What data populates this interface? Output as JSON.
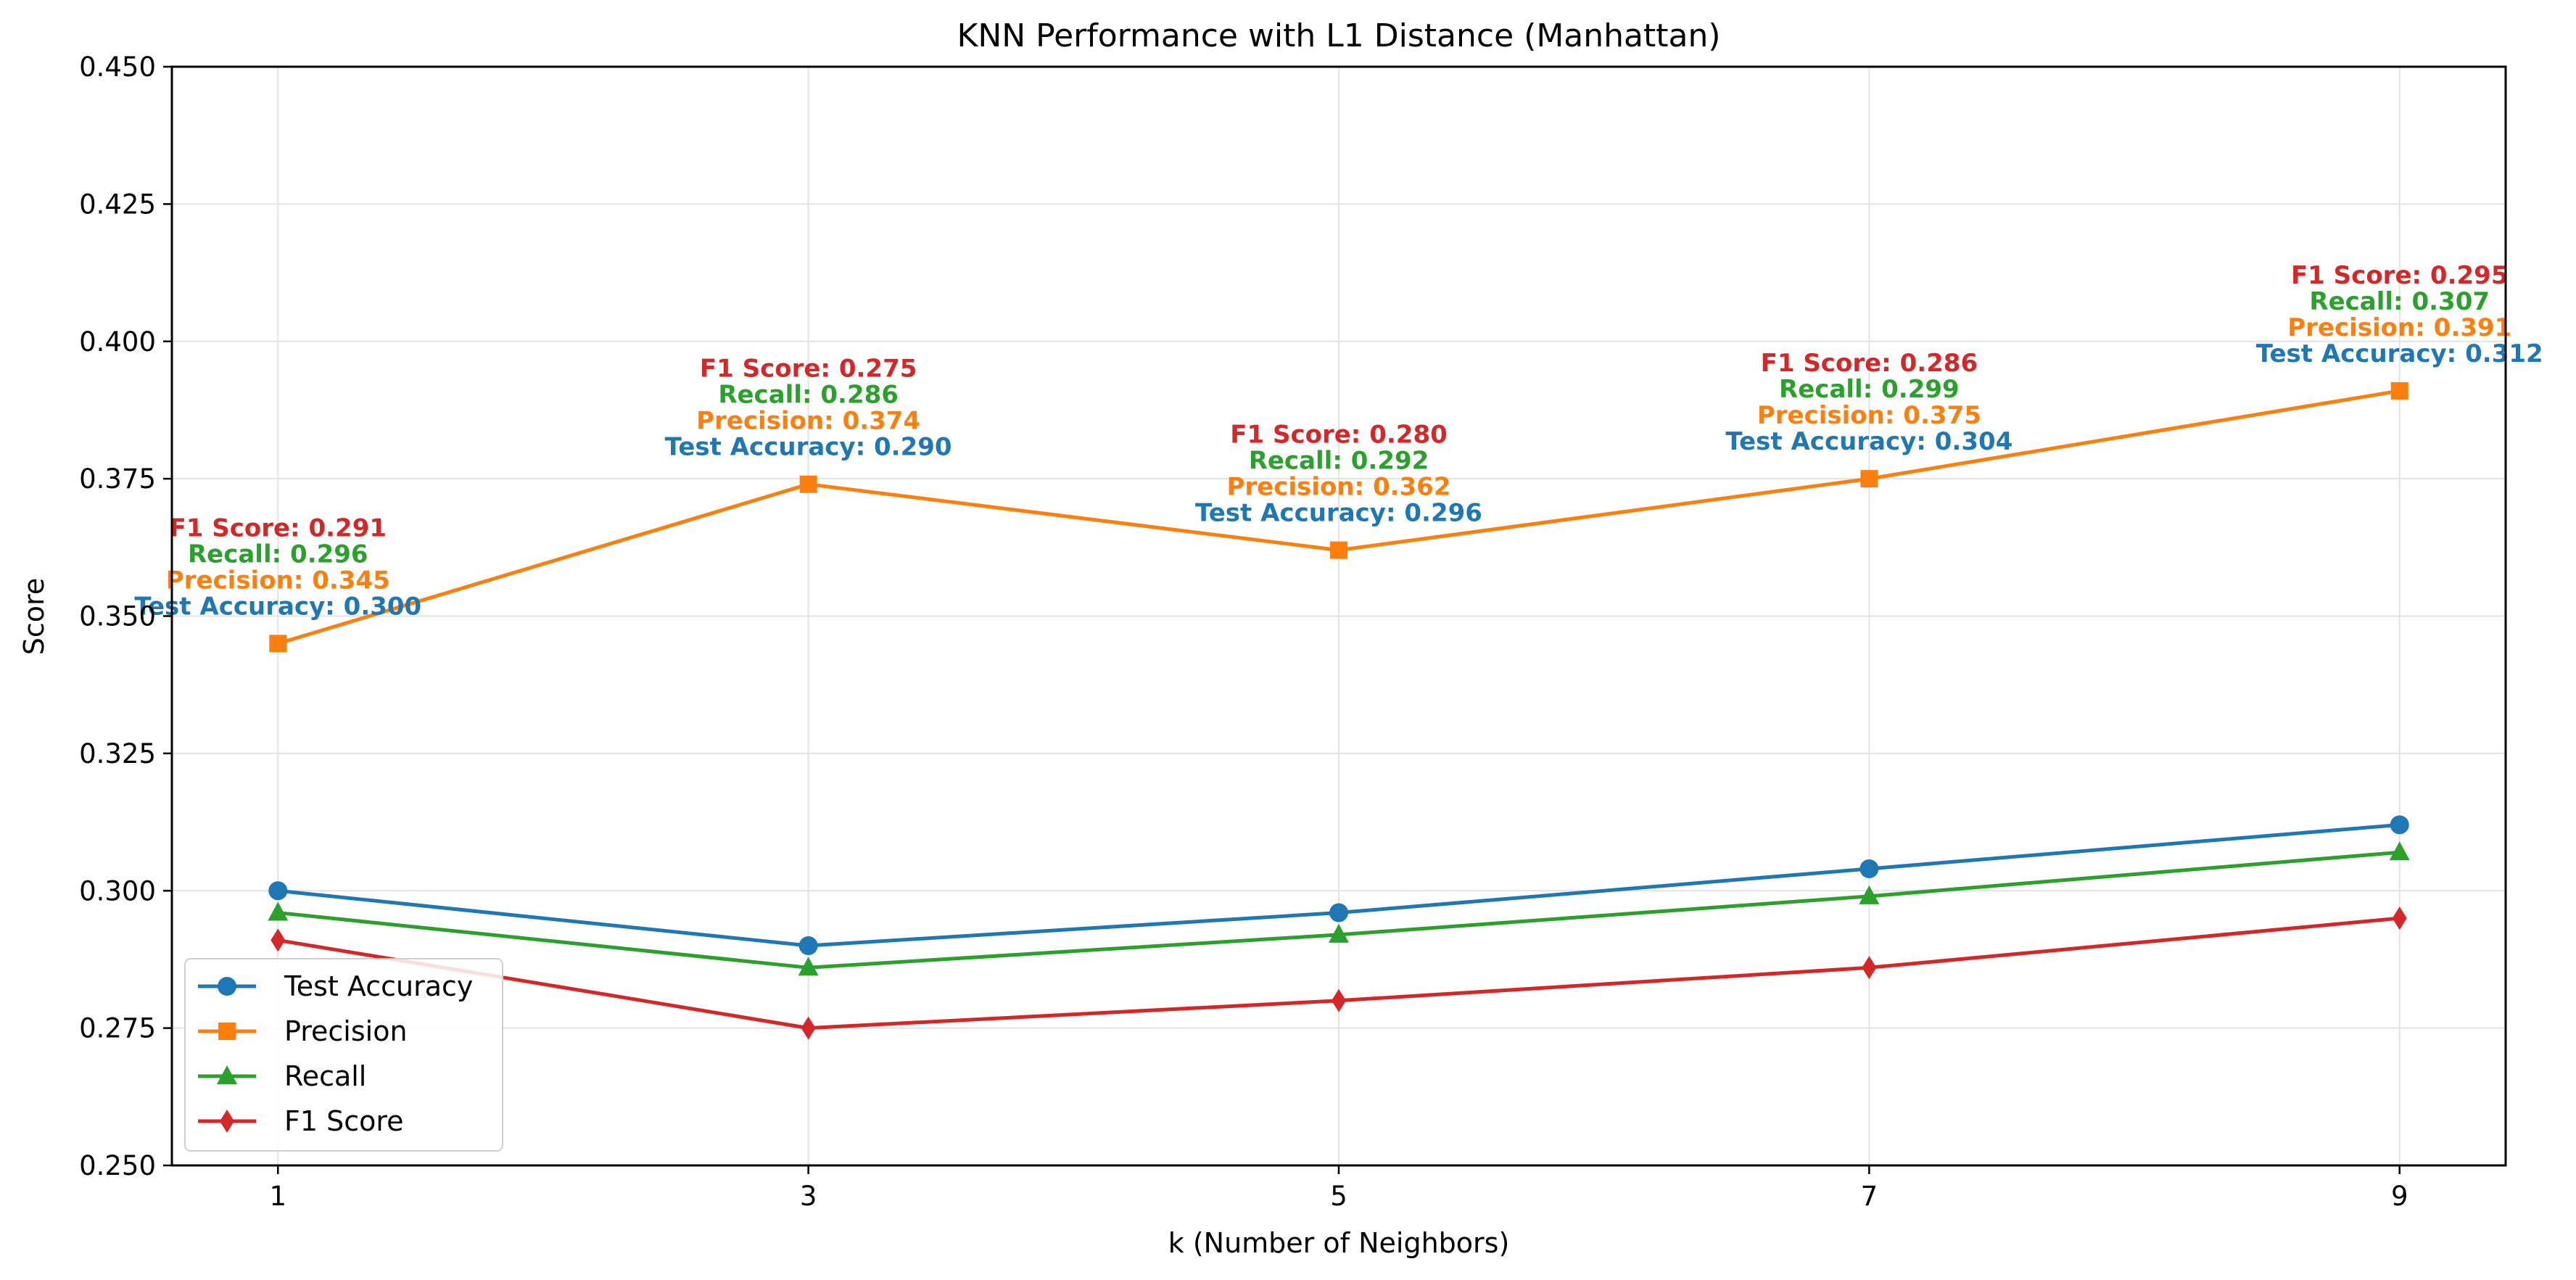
{
  "chart_data": {
    "type": "line",
    "title": "KNN Performance with L1 Distance (Manhattan)",
    "xlabel": "k (Number of Neighbors)",
    "ylabel": "Score",
    "x": [
      1,
      3,
      5,
      7,
      9
    ],
    "x_ticks": [
      "1",
      "3",
      "5",
      "7",
      "9"
    ],
    "ylim": [
      0.25,
      0.45
    ],
    "y_ticks": [
      "0.250",
      "0.275",
      "0.300",
      "0.325",
      "0.350",
      "0.375",
      "0.400",
      "0.425",
      "0.450"
    ],
    "grid": true,
    "legend_position": "lower-left",
    "series": [
      {
        "name": "Test Accuracy",
        "color": "#1f77b4",
        "marker": "circle",
        "values": [
          0.3,
          0.29,
          0.296,
          0.304,
          0.312
        ]
      },
      {
        "name": "Precision",
        "color": "#ff7f0e",
        "marker": "square",
        "values": [
          0.345,
          0.374,
          0.362,
          0.375,
          0.391
        ]
      },
      {
        "name": "Recall",
        "color": "#2ca02c",
        "marker": "triangle",
        "values": [
          0.296,
          0.286,
          0.292,
          0.299,
          0.307
        ]
      },
      {
        "name": "F1 Score",
        "color": "#d62728",
        "marker": "diamond",
        "values": [
          0.291,
          0.275,
          0.28,
          0.286,
          0.295
        ]
      }
    ],
    "annotations": [
      {
        "x": 1,
        "lines": [
          "F1 Score: 0.291",
          "Recall: 0.296",
          "Precision: 0.345",
          "Test Accuracy: 0.300"
        ]
      },
      {
        "x": 3,
        "lines": [
          "F1 Score: 0.275",
          "Recall: 0.286",
          "Precision: 0.374",
          "Test Accuracy: 0.290"
        ]
      },
      {
        "x": 5,
        "lines": [
          "F1 Score: 0.280",
          "Recall: 0.292",
          "Precision: 0.362",
          "Test Accuracy: 0.296"
        ]
      },
      {
        "x": 7,
        "lines": [
          "F1 Score: 0.286",
          "Recall: 0.299",
          "Precision: 0.375",
          "Test Accuracy: 0.304"
        ]
      },
      {
        "x": 9,
        "lines": [
          "F1 Score: 0.295",
          "Recall: 0.307",
          "Precision: 0.391",
          "Test Accuracy: 0.312"
        ]
      }
    ],
    "annotation_colors": [
      "#d62728",
      "#2ca02c",
      "#ff7f0e",
      "#1f77b4"
    ]
  }
}
